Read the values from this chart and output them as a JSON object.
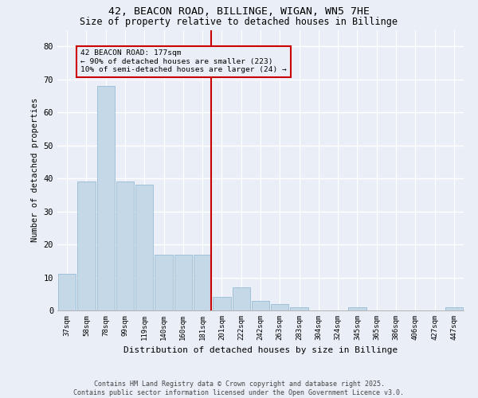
{
  "title1": "42, BEACON ROAD, BILLINGE, WIGAN, WN5 7HE",
  "title2": "Size of property relative to detached houses in Billinge",
  "xlabel": "Distribution of detached houses by size in Billinge",
  "ylabel": "Number of detached properties",
  "categories": [
    "37sqm",
    "58sqm",
    "78sqm",
    "99sqm",
    "119sqm",
    "140sqm",
    "160sqm",
    "181sqm",
    "201sqm",
    "222sqm",
    "242sqm",
    "263sqm",
    "283sqm",
    "304sqm",
    "324sqm",
    "345sqm",
    "365sqm",
    "386sqm",
    "406sqm",
    "427sqm",
    "447sqm"
  ],
  "values": [
    11,
    39,
    68,
    39,
    38,
    17,
    17,
    17,
    4,
    7,
    3,
    2,
    1,
    0,
    0,
    1,
    0,
    0,
    0,
    0,
    1
  ],
  "bar_color": "#c5d8e8",
  "bar_edgecolor": "#8ab4d0",
  "bg_color": "#eaeff7",
  "grid_color": "#ffffff",
  "vline_color": "#cc0000",
  "annotation_line1": "42 BEACON ROAD: 177sqm",
  "annotation_line2": "← 90% of detached houses are smaller (223)",
  "annotation_line3": "10% of semi-detached houses are larger (24) →",
  "ylim": [
    0,
    85
  ],
  "yticks": [
    0,
    10,
    20,
    30,
    40,
    50,
    60,
    70,
    80
  ],
  "footnote1": "Contains HM Land Registry data © Crown copyright and database right 2025.",
  "footnote2": "Contains public sector information licensed under the Open Government Licence v3.0.",
  "title_fontsize": 9.5,
  "subtitle_fontsize": 8.5
}
